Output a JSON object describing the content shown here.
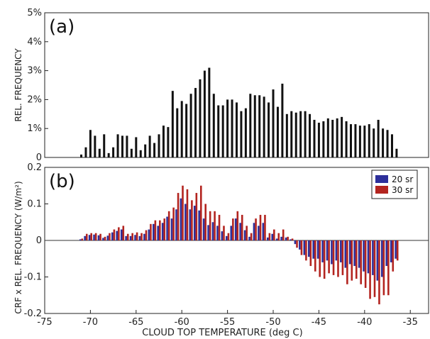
{
  "chart_data": [
    {
      "type": "bar",
      "panel_label": "(a)",
      "ylabel": "REL. FREQUENCY",
      "ylim": [
        0,
        5
      ],
      "y_ticks": [
        "0",
        "1%",
        "2%",
        "3%",
        "4%",
        "5%"
      ],
      "bar_color": "#111111",
      "x": [
        -71,
        -70.5,
        -70,
        -69.5,
        -69,
        -68.5,
        -68,
        -67.5,
        -67,
        -66.5,
        -66,
        -65.5,
        -65,
        -64.5,
        -64,
        -63.5,
        -63,
        -62.5,
        -62,
        -61.5,
        -61,
        -60.5,
        -60,
        -59.5,
        -59,
        -58.5,
        -58,
        -57.5,
        -57,
        -56.5,
        -56,
        -55.5,
        -55,
        -54.5,
        -54,
        -53.5,
        -53,
        -52.5,
        -52,
        -51.5,
        -51,
        -50.5,
        -50,
        -49.5,
        -49,
        -48.5,
        -48,
        -47.5,
        -47,
        -46.5,
        -46,
        -45.5,
        -45,
        -44.5,
        -44,
        -43.5,
        -43,
        -42.5,
        -42,
        -41.5,
        -41,
        -40.5,
        -40,
        -39.5,
        -39,
        -38.5,
        -38,
        -37.5,
        -37,
        -36.5
      ],
      "values": [
        0.1,
        0.35,
        0.95,
        0.75,
        0.3,
        0.8,
        0.15,
        0.35,
        0.8,
        0.75,
        0.75,
        0.3,
        0.7,
        0.25,
        0.45,
        0.75,
        0.5,
        0.8,
        1.1,
        1.05,
        2.3,
        1.7,
        1.95,
        1.85,
        2.2,
        2.4,
        2.7,
        3.0,
        3.1,
        2.2,
        1.8,
        1.8,
        2.0,
        2.0,
        1.9,
        1.6,
        1.7,
        2.2,
        2.15,
        2.15,
        2.1,
        1.9,
        2.35,
        1.75,
        2.55,
        1.5,
        1.6,
        1.55,
        1.6,
        1.6,
        1.5,
        1.3,
        1.2,
        1.25,
        1.35,
        1.3,
        1.35,
        1.4,
        1.25,
        1.15,
        1.15,
        1.1,
        1.1,
        1.15,
        1.0,
        1.3,
        1.0,
        0.95,
        0.8,
        0.3
      ],
      "xlim": [
        -75,
        -33
      ]
    },
    {
      "type": "bar",
      "panel_label": "(b)",
      "ylabel": "CRF x REL. FREQUENCY (W/m²)",
      "ylim": [
        -0.2,
        0.2
      ],
      "y_ticks": [
        -0.2,
        -0.1,
        0,
        0.1,
        0.2
      ],
      "x_ticks": [
        -75,
        -70,
        -65,
        -60,
        -55,
        -50,
        -45,
        -40,
        -35
      ],
      "xlabel": "CLOUD TOP TEMPERATURE (deg C)",
      "xlim": [
        -75,
        -33
      ],
      "legend_position": "top-right",
      "x": [
        -71,
        -70.5,
        -70,
        -69.5,
        -69,
        -68.5,
        -68,
        -67.5,
        -67,
        -66.5,
        -66,
        -65.5,
        -65,
        -64.5,
        -64,
        -63.5,
        -63,
        -62.5,
        -62,
        -61.5,
        -61,
        -60.5,
        -60,
        -59.5,
        -59,
        -58.5,
        -58,
        -57.5,
        -57,
        -56.5,
        -56,
        -55.5,
        -55,
        -54.5,
        -54,
        -53.5,
        -53,
        -52.5,
        -52,
        -51.5,
        -51,
        -50.5,
        -50,
        -49.5,
        -49,
        -48.5,
        -48,
        -47.5,
        -47,
        -46.5,
        -46,
        -45.5,
        -45,
        -44.5,
        -44,
        -43.5,
        -43,
        -42.5,
        -42,
        -41.5,
        -41,
        -40.5,
        -40,
        -39.5,
        -39,
        -38.5,
        -38,
        -37.5,
        -37,
        -36.5
      ],
      "series": [
        {
          "name": "20 sr",
          "color": "#2d2f9a",
          "values": [
            0.003,
            0.012,
            0.015,
            0.016,
            0.014,
            0.007,
            0.013,
            0.022,
            0.026,
            0.03,
            0.012,
            0.012,
            0.015,
            0.012,
            0.018,
            0.03,
            0.045,
            0.04,
            0.048,
            0.065,
            0.06,
            0.085,
            0.115,
            0.1,
            0.085,
            0.095,
            0.082,
            0.06,
            0.042,
            0.05,
            0.04,
            0.025,
            0.012,
            0.04,
            0.06,
            0.048,
            0.028,
            0.01,
            0.048,
            0.04,
            0.048,
            0.008,
            0.018,
            0.005,
            0.01,
            0.008,
            0.003,
            -0.01,
            -0.025,
            -0.04,
            -0.045,
            -0.05,
            -0.05,
            -0.06,
            -0.055,
            -0.065,
            -0.055,
            -0.06,
            -0.075,
            -0.065,
            -0.07,
            -0.075,
            -0.085,
            -0.09,
            -0.095,
            -0.11,
            -0.1,
            -0.07,
            -0.06,
            -0.05
          ]
        },
        {
          "name": "30 sr",
          "color": "#b3241f",
          "values": [
            0.005,
            0.018,
            0.02,
            0.02,
            0.018,
            0.01,
            0.02,
            0.03,
            0.036,
            0.04,
            0.018,
            0.02,
            0.022,
            0.02,
            0.028,
            0.045,
            0.055,
            0.055,
            0.06,
            0.08,
            0.09,
            0.13,
            0.15,
            0.14,
            0.11,
            0.13,
            0.15,
            0.1,
            0.08,
            0.08,
            0.07,
            0.04,
            0.02,
            0.06,
            0.08,
            0.07,
            0.04,
            0.02,
            0.06,
            0.07,
            0.07,
            0.02,
            0.03,
            0.02,
            0.03,
            0.01,
            0.005,
            -0.02,
            -0.04,
            -0.055,
            -0.07,
            -0.085,
            -0.1,
            -0.105,
            -0.09,
            -0.095,
            -0.1,
            -0.095,
            -0.12,
            -0.11,
            -0.105,
            -0.12,
            -0.13,
            -0.16,
            -0.155,
            -0.175,
            -0.15,
            -0.15,
            -0.085,
            -0.055
          ]
        }
      ]
    }
  ]
}
